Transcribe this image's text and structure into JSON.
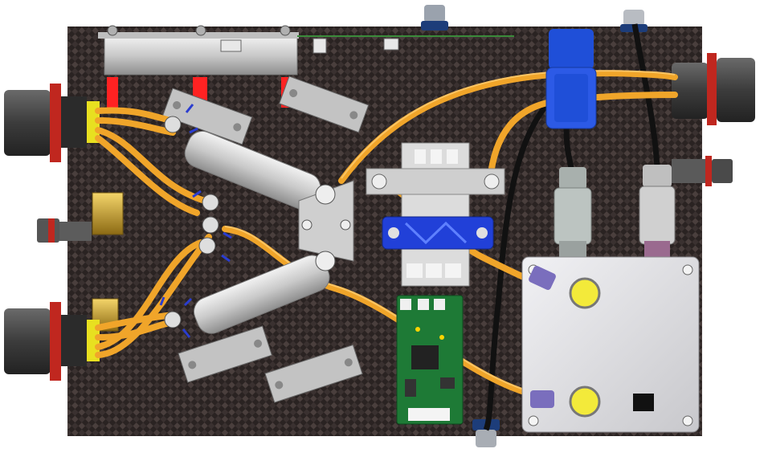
{
  "scene": {
    "kind": "3D render of an electrical junction enclosure on carbon-fiber base plate (top view)",
    "colors": {
      "background": "#ffffff",
      "carbon_dark": "#2a2322",
      "carbon_light": "#4a3f3d",
      "cable_orange": "#f0a52a",
      "cable_highlight": "#ffd27a",
      "connector_gray": "#4b4b4b",
      "seal_red": "#c0271f",
      "seal_yellow": "#e8e020",
      "relay_blue": "#1f4fd8",
      "pcb_green": "#1e7a36",
      "aluminum": "#d6d6d6",
      "terminal_yellow": "#f3ea3a",
      "fuse_red": "#ff1a1a",
      "resistor_gold": "#c9a233",
      "box_light": "#e4e4e8"
    }
  }
}
